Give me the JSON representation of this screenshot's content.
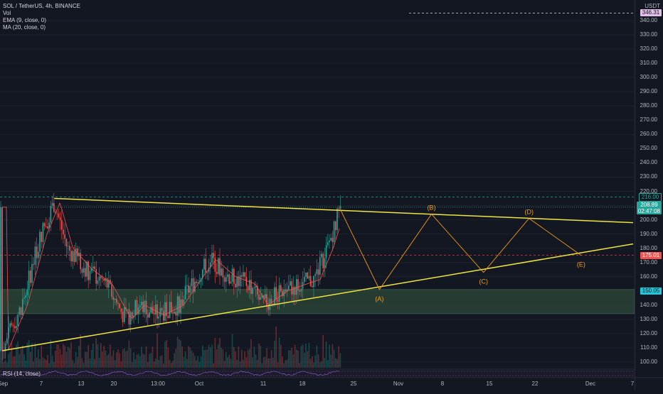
{
  "legend": {
    "symbol": "SOL / TetherUS, 4h, BINANCE",
    "vol": "Vol",
    "ema": "EMA (9, close, 0)",
    "ma": "MA (20, close, 0)"
  },
  "rsi_label": "RSI (14, close)",
  "currency": "USDT",
  "price_tags": {
    "top_marker": "346.31",
    "high_line": "216.00",
    "current": "208.89",
    "countdown": "02:47:08",
    "red_line": "175.01",
    "support": "150.05"
  },
  "colors": {
    "background": "#131722",
    "bull": "#26a69a",
    "bear": "#ef5350",
    "trendline": "#f0e442",
    "wave": "#f39c12",
    "zone": "#2e4a3a",
    "top_marker": "#e1bee7",
    "current_tag": "#26a69a",
    "red_tag": "#ef5350",
    "support_tag": "#26c6da"
  },
  "chart_data": {
    "type": "candlestick",
    "title": "SOL / TetherUS, 4h, BINANCE",
    "ylabel": "USDT",
    "ylim": [
      95,
      350
    ],
    "y_ticks": [
      "340.00",
      "330.00",
      "320.00",
      "310.00",
      "300.00",
      "290.00",
      "280.00",
      "270.00",
      "260.00",
      "250.00",
      "240.00",
      "230.00",
      "220.00",
      "210.00",
      "200.00",
      "190.00",
      "180.00",
      "170.00",
      "160.00",
      "150.00",
      "140.00",
      "130.00",
      "120.00",
      "110.00",
      "100.00"
    ],
    "x_ticks": [
      "Sep",
      "7",
      "13",
      "20",
      "13:00",
      "Oct",
      "11",
      "18",
      "25",
      "Nov",
      "8",
      "15",
      "22",
      "Dec",
      "7"
    ],
    "price_path": [
      {
        "date": "2021-09-01",
        "price": 108
      },
      {
        "date": "2021-09-04",
        "price": 140
      },
      {
        "date": "2021-09-07",
        "price": 190
      },
      {
        "date": "2021-09-09",
        "price": 212
      },
      {
        "date": "2021-09-11",
        "price": 180
      },
      {
        "date": "2021-09-14",
        "price": 165
      },
      {
        "date": "2021-09-17",
        "price": 155
      },
      {
        "date": "2021-09-20",
        "price": 130
      },
      {
        "date": "2021-09-22",
        "price": 140
      },
      {
        "date": "2021-09-25",
        "price": 133
      },
      {
        "date": "2021-09-28",
        "price": 140
      },
      {
        "date": "2021-10-01",
        "price": 160
      },
      {
        "date": "2021-10-03",
        "price": 172
      },
      {
        "date": "2021-10-06",
        "price": 160
      },
      {
        "date": "2021-10-09",
        "price": 155
      },
      {
        "date": "2021-10-11",
        "price": 140
      },
      {
        "date": "2021-10-14",
        "price": 150
      },
      {
        "date": "2021-10-17",
        "price": 155
      },
      {
        "date": "2021-10-19",
        "price": 158
      },
      {
        "date": "2021-10-21",
        "price": 180
      },
      {
        "date": "2021-10-23",
        "price": 208.89
      }
    ],
    "trendlines": [
      {
        "name": "upper",
        "from": [
          "2021-09-09",
          215
        ],
        "to": [
          "2021-12-07",
          198
        ]
      },
      {
        "name": "lower",
        "from": [
          "2021-09-01",
          108
        ],
        "to": [
          "2021-12-07",
          183
        ]
      }
    ],
    "support_zone": [
      134,
      151
    ],
    "wave_projection": [
      {
        "label": "",
        "date": "2021-10-23",
        "price": 207
      },
      {
        "label": "(A)",
        "date": "2021-10-29",
        "price": 151
      },
      {
        "label": "(B)",
        "date": "2021-11-06",
        "price": 204
      },
      {
        "label": "(C)",
        "date": "2021-11-14",
        "price": 163
      },
      {
        "label": "(D)",
        "date": "2021-11-21",
        "price": 201
      },
      {
        "label": "(E)",
        "date": "2021-11-29",
        "price": 175
      }
    ],
    "volume": "bars",
    "rsi": {
      "name": "RSI (14, close)"
    }
  }
}
